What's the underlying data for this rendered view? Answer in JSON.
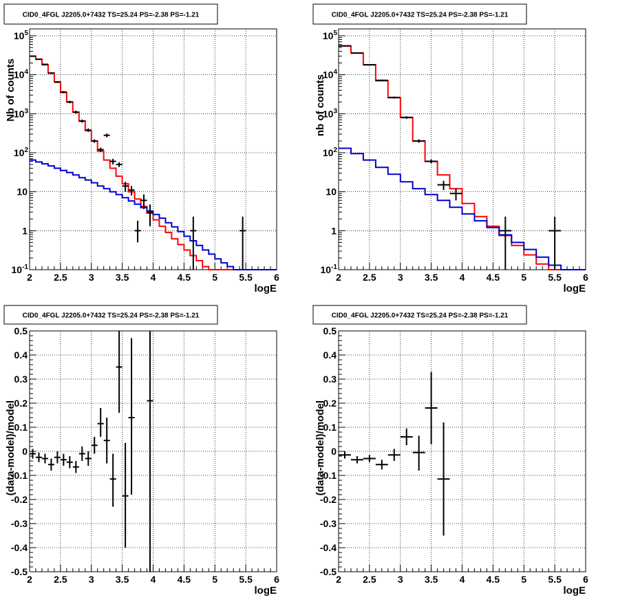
{
  "chart_data": [
    {
      "type": "histogram",
      "title": "CID0_4FGL J2205.0+7432 TS=25.24 PS=-2.38 PS=-1.21",
      "xlabel": "logE",
      "ylabel": "Nb of counts",
      "xlim": [
        2,
        6
      ],
      "ylim": [
        0.1,
        150000
      ],
      "yscale": "log",
      "grid": true,
      "x_ticks": [
        "2",
        "2.5",
        "3",
        "3.5",
        "4",
        "4.5",
        "5",
        "5.5",
        "6"
      ],
      "y_ticks": [
        {
          "v": 0.1,
          "b": "10",
          "e": "-1"
        },
        {
          "v": 1,
          "b": "1",
          "e": ""
        },
        {
          "v": 10,
          "b": "10",
          "e": ""
        },
        {
          "v": 100,
          "b": "10",
          "e": "2"
        },
        {
          "v": 1000,
          "b": "10",
          "e": "3"
        },
        {
          "v": 10000,
          "b": "10",
          "e": "4"
        },
        {
          "v": 100000,
          "b": "10",
          "e": "5"
        }
      ],
      "bin_edges": [
        2,
        2.1,
        2.2,
        2.3,
        2.4,
        2.5,
        2.6,
        2.7,
        2.8,
        2.9,
        3,
        3.1,
        3.2,
        3.3,
        3.4,
        3.5,
        3.6,
        3.7,
        3.8,
        3.9,
        4,
        4.1,
        4.2,
        4.3,
        4.4,
        4.5,
        4.6,
        4.7,
        4.8,
        4.9,
        5,
        5.1,
        5.2,
        5.3,
        5.4,
        5.5,
        5.6,
        5.7,
        5.8,
        5.9,
        6
      ],
      "series": [
        {
          "color": "#ff0000",
          "values": [
            30000,
            25000,
            18000,
            11000,
            6500,
            3500,
            2000,
            1100,
            650,
            370,
            200,
            110,
            65,
            40,
            25,
            16,
            10,
            6.5,
            4.2,
            2.8,
            1.9,
            1.3,
            0.9,
            0.62,
            0.44,
            0.32,
            0.23,
            0.17,
            0.12,
            0.1,
            0.1,
            0.1,
            0.1,
            0.1,
            0.1,
            0.1,
            0.1,
            0.1,
            0.1,
            0.1
          ]
        },
        {
          "color": "#0000cc",
          "values": [
            65,
            58,
            52,
            46,
            40,
            35,
            31,
            27,
            23,
            20,
            17,
            14,
            12,
            10,
            8.5,
            7,
            5.8,
            4.8,
            3.9,
            3.2,
            2.6,
            2.1,
            1.6,
            1.25,
            0.95,
            0.72,
            0.55,
            0.42,
            0.32,
            0.25,
            0.19,
            0.15,
            0.12,
            0.1,
            0.1,
            0.1,
            0.1,
            0.1,
            0.1,
            0.1
          ]
        }
      ],
      "points": [
        {
          "x": 2.05,
          "y": 30000,
          "ylo": 29000,
          "yhi": 31000
        },
        {
          "x": 2.15,
          "y": 25000,
          "ylo": 24200,
          "yhi": 25800
        },
        {
          "x": 2.25,
          "y": 18500,
          "ylo": 17800,
          "yhi": 19200
        },
        {
          "x": 2.35,
          "y": 11000,
          "ylo": 10500,
          "yhi": 11500
        },
        {
          "x": 2.45,
          "y": 6500,
          "ylo": 6150,
          "yhi": 6850
        },
        {
          "x": 2.55,
          "y": 3600,
          "ylo": 3380,
          "yhi": 3820
        },
        {
          "x": 2.65,
          "y": 2000,
          "ylo": 1850,
          "yhi": 2150
        },
        {
          "x": 2.75,
          "y": 1100,
          "ylo": 1000,
          "yhi": 1200
        },
        {
          "x": 2.85,
          "y": 650,
          "ylo": 590,
          "yhi": 710
        },
        {
          "x": 2.95,
          "y": 380,
          "ylo": 340,
          "yhi": 420
        },
        {
          "x": 3.05,
          "y": 200,
          "ylo": 180,
          "yhi": 220
        },
        {
          "x": 3.15,
          "y": 120,
          "ylo": 105,
          "yhi": 135
        },
        {
          "x": 3.25,
          "y": 280,
          "ylo": 250,
          "yhi": 310
        },
        {
          "x": 3.35,
          "y": 60,
          "ylo": 50,
          "yhi": 70
        },
        {
          "x": 3.45,
          "y": 50,
          "ylo": 43,
          "yhi": 57
        },
        {
          "x": 3.55,
          "y": 14,
          "ylo": 10,
          "yhi": 18
        },
        {
          "x": 3.65,
          "y": 11,
          "ylo": 8,
          "yhi": 14
        },
        {
          "x": 3.75,
          "y": 1,
          "ylo": 0.5,
          "yhi": 1.8
        },
        {
          "x": 3.85,
          "y": 6,
          "ylo": 3.6,
          "yhi": 8.5
        },
        {
          "x": 3.95,
          "y": 3,
          "ylo": 1.3,
          "yhi": 4.7
        },
        {
          "x": 4.65,
          "y": 1,
          "ylo": 0.1,
          "yhi": 2.3
        },
        {
          "x": 5.45,
          "y": 1,
          "ylo": 0.1,
          "yhi": 2.3
        }
      ]
    },
    {
      "type": "histogram",
      "title": "CID0_4FGL J2205.0+7432 TS=25.24 PS=-2.38 PS=-1.21",
      "xlabel": "logE",
      "ylabel": "nb of counts",
      "xlim": [
        2,
        6
      ],
      "ylim": [
        0.1,
        150000
      ],
      "yscale": "log",
      "grid": true,
      "x_ticks": [
        "2",
        "2.5",
        "3",
        "3.5",
        "4",
        "4.5",
        "5",
        "5.5",
        "6"
      ],
      "y_ticks": [
        {
          "v": 0.1,
          "b": "10",
          "e": "-1"
        },
        {
          "v": 1,
          "b": "1",
          "e": ""
        },
        {
          "v": 10,
          "b": "10",
          "e": ""
        },
        {
          "v": 100,
          "b": "10",
          "e": "2"
        },
        {
          "v": 1000,
          "b": "10",
          "e": "3"
        },
        {
          "v": 10000,
          "b": "10",
          "e": "4"
        },
        {
          "v": 100000,
          "b": "10",
          "e": "5"
        }
      ],
      "bin_edges": [
        2,
        2.2,
        2.4,
        2.6,
        2.8,
        3,
        3.2,
        3.4,
        3.6,
        3.8,
        4,
        4.2,
        4.4,
        4.6,
        4.8,
        5,
        5.2,
        5.4,
        5.6,
        5.8,
        6
      ],
      "series": [
        {
          "color": "#ff0000",
          "values": [
            55000,
            36000,
            18000,
            7000,
            2600,
            800,
            200,
            60,
            27,
            12,
            5,
            2.3,
            1.3,
            0.75,
            0.42,
            0.24,
            0.14,
            0.1,
            0.1,
            0.1
          ]
        },
        {
          "color": "#0000cc",
          "values": [
            130,
            95,
            65,
            42,
            28,
            18,
            12,
            8.5,
            6,
            4,
            2.7,
            1.8,
            1.2,
            0.78,
            0.5,
            0.33,
            0.21,
            0.13,
            0.1,
            0.1
          ]
        }
      ],
      "points": [
        {
          "x": 2.1,
          "y": 55000,
          "ylo": 54000,
          "yhi": 56000
        },
        {
          "x": 2.3,
          "y": 36000,
          "ylo": 35300,
          "yhi": 36700
        },
        {
          "x": 2.5,
          "y": 18000,
          "ylo": 17500,
          "yhi": 18500
        },
        {
          "x": 2.7,
          "y": 7200,
          "ylo": 6900,
          "yhi": 7500
        },
        {
          "x": 2.9,
          "y": 2600,
          "ylo": 2450,
          "yhi": 2750
        },
        {
          "x": 3.1,
          "y": 800,
          "ylo": 740,
          "yhi": 860
        },
        {
          "x": 3.3,
          "y": 200,
          "ylo": 180,
          "yhi": 220
        },
        {
          "x": 3.5,
          "y": 60,
          "ylo": 53,
          "yhi": 67
        },
        {
          "x": 3.7,
          "y": 15,
          "ylo": 11,
          "yhi": 19
        },
        {
          "x": 3.9,
          "y": 9,
          "ylo": 6,
          "yhi": 12
        },
        {
          "x": 4.7,
          "y": 1,
          "ylo": 0.1,
          "yhi": 2.3
        },
        {
          "x": 5.5,
          "y": 1,
          "ylo": 0.1,
          "yhi": 2.3
        }
      ]
    },
    {
      "type": "scatter",
      "title": "CID0_4FGL J2205.0+7432 TS=25.24 PS=-2.38 PS=-1.21",
      "xlabel": "logE",
      "ylabel": "(data-model)/model",
      "xlim": [
        2,
        6
      ],
      "ylim": [
        -0.5,
        0.5
      ],
      "grid": true,
      "x_ticks": [
        "2",
        "2.5",
        "3",
        "3.5",
        "4",
        "4.5",
        "5",
        "5.5",
        "6"
      ],
      "y_ticks": [
        {
          "v": -0.5,
          "l": "-0.5"
        },
        {
          "v": -0.4,
          "l": "-0.4"
        },
        {
          "v": -0.3,
          "l": "-0.3"
        },
        {
          "v": -0.2,
          "l": "-0.2"
        },
        {
          "v": -0.1,
          "l": "-0.1"
        },
        {
          "v": 0,
          "l": "0"
        },
        {
          "v": 0.1,
          "l": "0.1"
        },
        {
          "v": 0.2,
          "l": "0.2"
        },
        {
          "v": 0.3,
          "l": "0.3"
        },
        {
          "v": 0.4,
          "l": "0.4"
        },
        {
          "v": 0.5,
          "l": "0.5"
        }
      ],
      "points": [
        {
          "x": 2.05,
          "y": -0.01,
          "ylo": -0.03,
          "yhi": 0.01,
          "xw": 0.05
        },
        {
          "x": 2.15,
          "y": -0.025,
          "ylo": -0.045,
          "yhi": -0.005,
          "xw": 0.05
        },
        {
          "x": 2.25,
          "y": -0.03,
          "ylo": -0.05,
          "yhi": -0.01,
          "xw": 0.05
        },
        {
          "x": 2.35,
          "y": -0.055,
          "ylo": -0.08,
          "yhi": -0.03,
          "xw": 0.05
        },
        {
          "x": 2.45,
          "y": -0.025,
          "ylo": -0.05,
          "yhi": 0.0,
          "xw": 0.05
        },
        {
          "x": 2.55,
          "y": -0.035,
          "ylo": -0.06,
          "yhi": -0.01,
          "xw": 0.05
        },
        {
          "x": 2.65,
          "y": -0.045,
          "ylo": -0.07,
          "yhi": -0.02,
          "xw": 0.05
        },
        {
          "x": 2.75,
          "y": -0.065,
          "ylo": -0.09,
          "yhi": -0.04,
          "xw": 0.05
        },
        {
          "x": 2.85,
          "y": -0.01,
          "ylo": -0.04,
          "yhi": 0.02,
          "xw": 0.05
        },
        {
          "x": 2.95,
          "y": -0.03,
          "ylo": -0.06,
          "yhi": 0.0,
          "xw": 0.05
        },
        {
          "x": 3.05,
          "y": 0.025,
          "ylo": -0.01,
          "yhi": 0.06,
          "xw": 0.05
        },
        {
          "x": 3.15,
          "y": 0.115,
          "ylo": 0.06,
          "yhi": 0.18,
          "xw": 0.05
        },
        {
          "x": 3.25,
          "y": 0.045,
          "ylo": -0.05,
          "yhi": 0.14,
          "xw": 0.05
        },
        {
          "x": 3.35,
          "y": -0.115,
          "ylo": -0.23,
          "yhi": -0.01,
          "xw": 0.05
        },
        {
          "x": 3.45,
          "y": 0.35,
          "ylo": 0.16,
          "yhi": 0.5,
          "xw": 0.05
        },
        {
          "x": 3.55,
          "y": -0.185,
          "ylo": -0.4,
          "yhi": 0.035,
          "xw": 0.05
        },
        {
          "x": 3.65,
          "y": 0.14,
          "ylo": -0.18,
          "yhi": 0.47,
          "xw": 0.05
        },
        {
          "x": 3.95,
          "y": 0.21,
          "ylo": -0.5,
          "yhi": 0.5,
          "xw": 0.05
        }
      ]
    },
    {
      "type": "scatter",
      "title": "CID0_4FGL J2205.0+7432 TS=25.24 PS=-2.38 PS=-1.21",
      "xlabel": "logE",
      "ylabel": "(data-model)/model",
      "xlim": [
        2,
        6
      ],
      "ylim": [
        -0.5,
        0.5
      ],
      "grid": true,
      "x_ticks": [
        "2",
        "2.5",
        "3",
        "3.5",
        "4",
        "4.5",
        "5",
        "5.5",
        "6"
      ],
      "y_ticks": [
        {
          "v": -0.5,
          "l": "-0.5"
        },
        {
          "v": -0.4,
          "l": "-0.4"
        },
        {
          "v": -0.3,
          "l": "-0.3"
        },
        {
          "v": -0.2,
          "l": "-0.2"
        },
        {
          "v": -0.1,
          "l": "-0.1"
        },
        {
          "v": 0,
          "l": "0"
        },
        {
          "v": 0.1,
          "l": "0.1"
        },
        {
          "v": 0.2,
          "l": "0.2"
        },
        {
          "v": 0.3,
          "l": "0.3"
        },
        {
          "v": 0.4,
          "l": "0.4"
        },
        {
          "v": 0.5,
          "l": "0.5"
        }
      ],
      "points": [
        {
          "x": 2.1,
          "y": -0.015,
          "ylo": -0.03,
          "yhi": 0.0,
          "xw": 0.1
        },
        {
          "x": 2.3,
          "y": -0.035,
          "ylo": -0.05,
          "yhi": -0.02,
          "xw": 0.1
        },
        {
          "x": 2.5,
          "y": -0.03,
          "ylo": -0.045,
          "yhi": -0.015,
          "xw": 0.1
        },
        {
          "x": 2.7,
          "y": -0.055,
          "ylo": -0.075,
          "yhi": -0.035,
          "xw": 0.1
        },
        {
          "x": 2.9,
          "y": -0.015,
          "ylo": -0.04,
          "yhi": 0.01,
          "xw": 0.1
        },
        {
          "x": 3.1,
          "y": 0.06,
          "ylo": 0.025,
          "yhi": 0.095,
          "xw": 0.1
        },
        {
          "x": 3.3,
          "y": -0.005,
          "ylo": -0.08,
          "yhi": 0.065,
          "xw": 0.1
        },
        {
          "x": 3.5,
          "y": 0.18,
          "ylo": 0.03,
          "yhi": 0.33,
          "xw": 0.1
        },
        {
          "x": 3.7,
          "y": -0.115,
          "ylo": -0.35,
          "yhi": 0.12,
          "xw": 0.1
        }
      ]
    }
  ]
}
